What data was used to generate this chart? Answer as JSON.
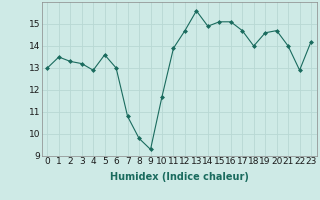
{
  "x": [
    0,
    1,
    2,
    3,
    4,
    5,
    6,
    7,
    8,
    9,
    10,
    11,
    12,
    13,
    14,
    15,
    16,
    17,
    18,
    19,
    20,
    21,
    22,
    23
  ],
  "y": [
    13.0,
    13.5,
    13.3,
    13.2,
    12.9,
    13.6,
    13.0,
    10.8,
    9.8,
    9.3,
    11.7,
    13.9,
    14.7,
    15.6,
    14.9,
    15.1,
    15.1,
    14.7,
    14.0,
    14.6,
    14.7,
    14.0,
    12.9,
    14.2
  ],
  "xlabel": "Humidex (Indice chaleur)",
  "ylabel": "",
  "ylim": [
    9,
    16
  ],
  "xlim": [
    -0.5,
    23.5
  ],
  "bg_color": "#ceeae6",
  "grid_color": "#b8d8d4",
  "line_color": "#1a6b5e",
  "marker_color": "#1a6b5e",
  "xlabel_fontsize": 7,
  "tick_fontsize": 6.5,
  "yticks": [
    9,
    10,
    11,
    12,
    13,
    14,
    15
  ],
  "xticks": [
    0,
    1,
    2,
    3,
    4,
    5,
    6,
    7,
    8,
    9,
    10,
    11,
    12,
    13,
    14,
    15,
    16,
    17,
    18,
    19,
    20,
    21,
    22,
    23
  ]
}
